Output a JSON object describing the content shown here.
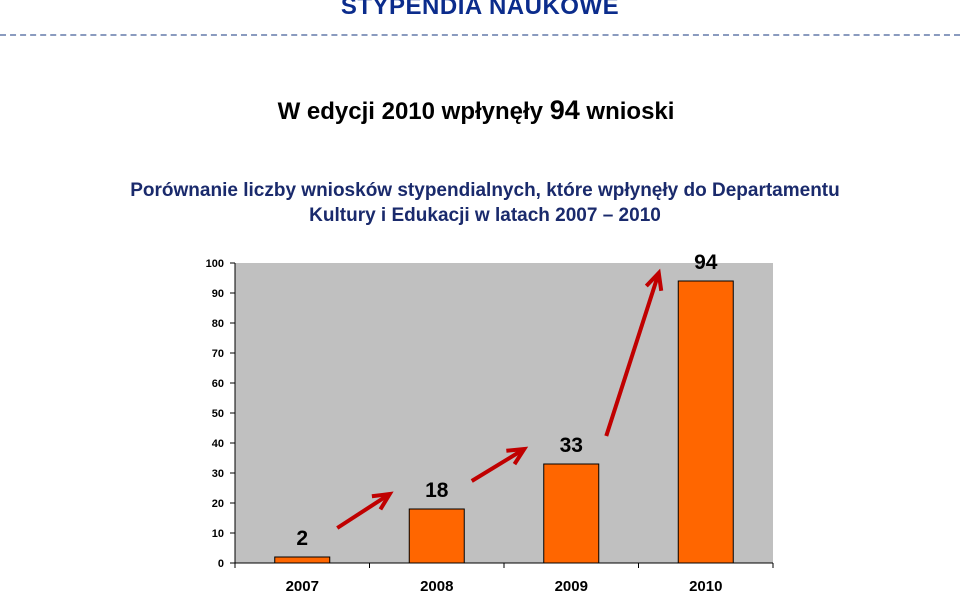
{
  "header": {
    "title": "STYPENDIA NAUKOWE"
  },
  "headline": {
    "before": "W edycji 2010 wpłynęły",
    "number": "94",
    "after": "wnioski"
  },
  "subtitle": {
    "line1": "Porównanie liczby wniosków stypendialnych, które wpłynęły do Departamentu",
    "line2": "Kultury i Edukacji w latach 2007 – 2010"
  },
  "colors": {
    "plot_bg": "#c0c0c0",
    "bar": "#ff6600",
    "arrow": "#c00000",
    "header": "#0b2c8c"
  },
  "chart_data": {
    "type": "bar",
    "categories": [
      "2007",
      "2008",
      "2009",
      "2010"
    ],
    "values": [
      2,
      18,
      33,
      94
    ],
    "data_labels": [
      "2",
      "18",
      "33",
      "94"
    ],
    "ylim": [
      0,
      100
    ],
    "yticks": [
      0,
      10,
      20,
      30,
      40,
      50,
      60,
      70,
      80,
      90,
      100
    ],
    "grid": false,
    "annotations": "red arrows pointing up between consecutive bars"
  }
}
